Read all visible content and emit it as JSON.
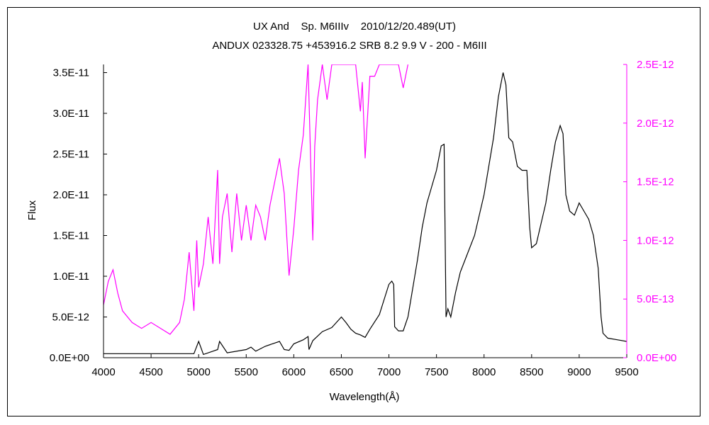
{
  "chart_data": {
    "type": "line",
    "title": "UX And    Sp. M6IIIv    2010/12/20.489(UT)",
    "subtitle": "ANDUX 023328.75 +453916.2 SRB 8.2 9.9 V - 200 - M6III",
    "xlabel": "Wavelength(Å)",
    "ylabel": "Flux",
    "xlim": [
      4000,
      9500
    ],
    "ylim_left": [
      0,
      3.6e-11
    ],
    "ylim_right": [
      0,
      2.5e-12
    ],
    "x_ticks": [
      "4000",
      "4500",
      "5000",
      "5500",
      "6000",
      "6500",
      "7000",
      "7500",
      "8000",
      "8500",
      "9000",
      "9500"
    ],
    "y_ticks_left": [
      "0.0E+00",
      "5.0E-12",
      "1.0E-11",
      "1.5E-11",
      "2.0E-11",
      "2.5E-11",
      "3.0E-11",
      "3.5E-11"
    ],
    "y_ticks_right": [
      "0.0E+00",
      "5.0E-13",
      "1.0E-12",
      "1.5E-12",
      "2.0E-12",
      "2.5E-12"
    ],
    "grid": false,
    "colors": {
      "left_series": "#000000",
      "right_series": "#ff00ff",
      "right_axis": "#ff00ff"
    },
    "series": [
      {
        "axis": "left",
        "color": "#000000",
        "x": [
          4000,
          4500,
          4800,
          4950,
          5000,
          5050,
          5150,
          5200,
          5220,
          5300,
          5500,
          5550,
          5600,
          5700,
          5800,
          5850,
          5900,
          5950,
          6000,
          6100,
          6150,
          6160,
          6200,
          6300,
          6400,
          6500,
          6550,
          6600,
          6650,
          6700,
          6750,
          6800,
          6900,
          7000,
          7030,
          7050,
          7060,
          7100,
          7150,
          7200,
          7300,
          7350,
          7400,
          7450,
          7500,
          7550,
          7580,
          7600,
          7620,
          7650,
          7700,
          7750,
          7800,
          7900,
          8000,
          8100,
          8150,
          8200,
          8230,
          8260,
          8300,
          8350,
          8400,
          8450,
          8480,
          8500,
          8550,
          8600,
          8650,
          8700,
          8750,
          8800,
          8830,
          8860,
          8900,
          8950,
          9000,
          9050,
          9100,
          9150,
          9200,
          9230,
          9250,
          9300,
          9400,
          9500
        ],
        "y": [
          5e-13,
          5e-13,
          5e-13,
          5e-13,
          2e-12,
          4e-13,
          8e-13,
          1e-12,
          2e-12,
          6e-13,
          1e-12,
          1.3e-12,
          8e-13,
          1.4e-12,
          1.8e-12,
          2e-12,
          1e-12,
          9e-13,
          1.7e-12,
          2.2e-12,
          2.6e-12,
          1e-12,
          2.1e-12,
          3.2e-12,
          3.7e-12,
          5e-12,
          4.3e-12,
          3.5e-12,
          3e-12,
          2.8e-12,
          2.5e-12,
          3.5e-12,
          5.3e-12,
          9e-12,
          9.4e-12,
          9e-12,
          3.8e-12,
          3.3e-12,
          3.3e-12,
          5e-12,
          1.2e-11,
          1.6e-11,
          1.9e-11,
          2.1e-11,
          2.3e-11,
          2.6e-11,
          2.62e-11,
          5e-12,
          6e-12,
          5e-12,
          8e-12,
          1.05e-11,
          1.2e-11,
          1.5e-11,
          2e-11,
          2.7e-11,
          3.2e-11,
          3.5e-11,
          3.35e-11,
          2.7e-11,
          2.65e-11,
          2.35e-11,
          2.3e-11,
          2.3e-11,
          1.6e-11,
          1.35e-11,
          1.4e-11,
          1.65e-11,
          1.9e-11,
          2.3e-11,
          2.65e-11,
          2.85e-11,
          2.75e-11,
          2e-11,
          1.8e-11,
          1.75e-11,
          1.9e-11,
          1.8e-11,
          1.7e-11,
          1.5e-11,
          1.1e-11,
          5e-12,
          3e-12,
          2.4e-12,
          2.2e-12,
          2e-12
        ]
      },
      {
        "axis": "right",
        "color": "#ff00ff",
        "x": [
          4000,
          4050,
          4100,
          4150,
          4200,
          4300,
          4400,
          4500,
          4600,
          4700,
          4800,
          4850,
          4900,
          4950,
          4980,
          5000,
          5050,
          5100,
          5150,
          5200,
          5220,
          5250,
          5300,
          5350,
          5400,
          5450,
          5500,
          5550,
          5600,
          5650,
          5700,
          5750,
          5800,
          5850,
          5900,
          5950,
          6000,
          6050,
          6100,
          6150,
          6200,
          6220,
          6250,
          6300,
          6350,
          6400,
          6450,
          6500,
          6550,
          6600,
          6650,
          6700,
          6720,
          6750,
          6800,
          6850,
          6900,
          6950,
          7000,
          7050,
          7100,
          7150,
          7200
        ],
        "y": [
          4.5e-13,
          6.5e-13,
          7.5e-13,
          5.5e-13,
          4e-13,
          3e-13,
          2.5e-13,
          3e-13,
          2.5e-13,
          2e-13,
          3e-13,
          5e-13,
          9e-13,
          4e-13,
          1e-12,
          6e-13,
          8e-13,
          1.2e-12,
          8e-13,
          1.6e-12,
          8e-13,
          1.2e-12,
          1.4e-12,
          9e-13,
          1.4e-12,
          1e-12,
          1.3e-12,
          1e-12,
          1.3e-12,
          1.2e-12,
          1e-12,
          1.3e-12,
          1.5e-12,
          1.7e-12,
          1.4e-12,
          7e-13,
          1.1e-12,
          1.6e-12,
          1.9e-12,
          2.5e-12,
          1e-12,
          1.8e-12,
          2.2e-12,
          2.5e-12,
          2.2e-12,
          2.5e-12,
          2.5e-12,
          2.5e-12,
          2.5e-12,
          2.5e-12,
          2.5e-12,
          2.1e-12,
          2.35e-12,
          1.7e-12,
          2.4e-12,
          2.4e-12,
          2.5e-12,
          2.5e-12,
          2.5e-12,
          2.5e-12,
          2.5e-12,
          2.3e-12,
          2.5e-12
        ]
      }
    ]
  }
}
